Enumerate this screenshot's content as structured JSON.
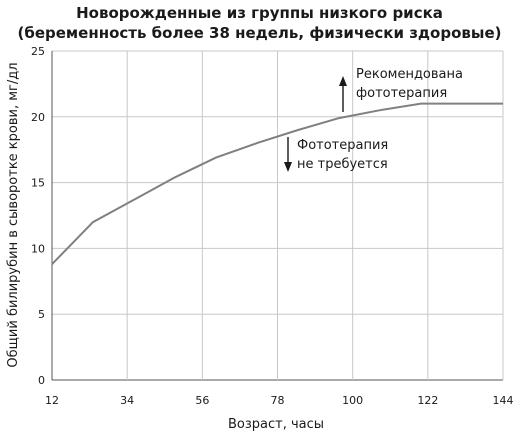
{
  "chart_data": {
    "type": "line",
    "title": "Новорожденные из группы низкого риска",
    "subtitle": "(беременность более 38 недель, физически здоровые)",
    "xlabel": "Возраст, часы",
    "ylabel": "Общий билирубин в сыворотке крови, мг/дл",
    "xlim": [
      12,
      144
    ],
    "ylim": [
      0,
      25
    ],
    "x_ticks": [
      12,
      34,
      56,
      78,
      100,
      122,
      144
    ],
    "y_ticks": [
      0,
      5,
      10,
      15,
      20,
      25
    ],
    "grid": true,
    "series": [
      {
        "x": [
          12,
          24,
          36,
          48,
          60,
          72,
          84,
          96,
          108,
          120,
          132,
          144
        ],
        "y": [
          8.8,
          12.0,
          13.7,
          15.4,
          16.9,
          18.0,
          19.0,
          19.9,
          20.5,
          21.0,
          21.0,
          21.0
        ]
      }
    ],
    "annotations": {
      "above": [
        "Рекомендована",
        "фототерапия"
      ],
      "below": [
        "Фототерапия",
        "не требуется"
      ]
    }
  },
  "colors": {
    "line": "#808080",
    "grid": "#c8c8c8",
    "axis": "#555555"
  }
}
